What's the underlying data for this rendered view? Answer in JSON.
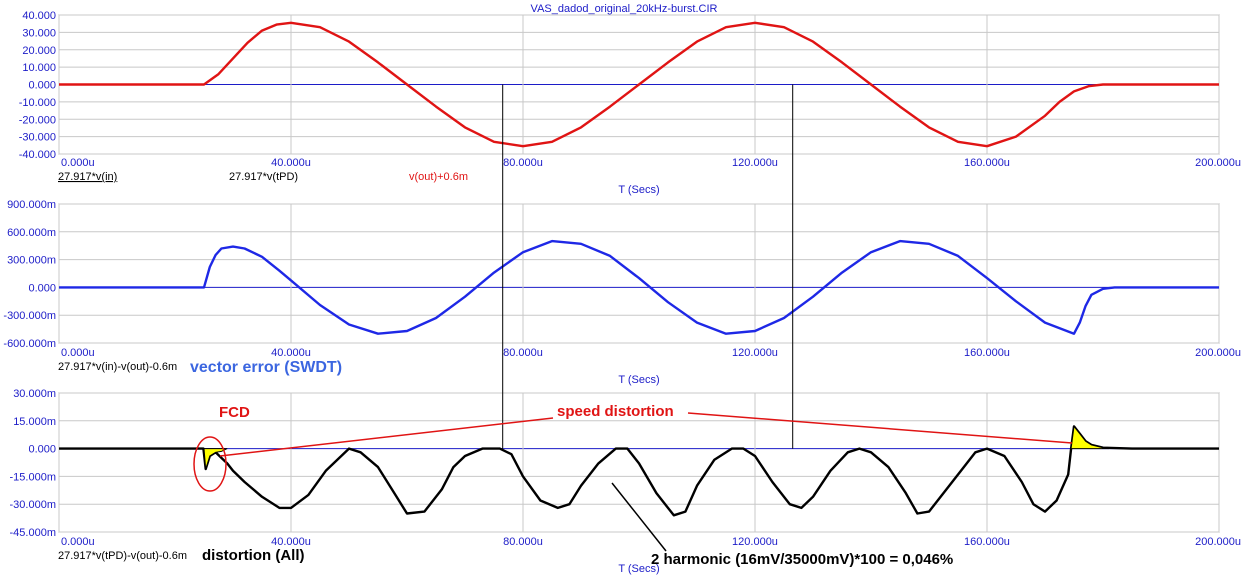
{
  "title": "VAS_dadod_original_20kHz-burst.CIR",
  "colors": {
    "axis_text": "#1c1cc8",
    "grid": "#c8c8c8",
    "zero_line": "#1c1cc8",
    "red": "#e01414",
    "blue": "#1e28e6",
    "black": "#000000",
    "highlight": "#ffff00"
  },
  "chart_data": [
    {
      "type": "line",
      "xlabel": "T (Secs)",
      "xlim": [
        0,
        200
      ],
      "x_ticks": [
        "0.000u",
        "40.000u",
        "80.000u",
        "120.000u",
        "160.000u",
        "200.000u"
      ],
      "ylim": [
        -40,
        40
      ],
      "y_ticks": [
        "40.000",
        "30.000",
        "20.000",
        "10.000",
        "0.000",
        "-10.000",
        "-20.000",
        "-30.000",
        "-40.000"
      ],
      "trace_labels": [
        "27.917*v(in)",
        "27.917*v(tPD)",
        "v(out)+0.6m"
      ],
      "series": [
        {
          "name": "v(out)+0.6m",
          "color": "red",
          "x": [
            0,
            25,
            27.5,
            30,
            32.5,
            35,
            37.5,
            40,
            45,
            50,
            55,
            60,
            65,
            70,
            75,
            80,
            85,
            90,
            95,
            100,
            105,
            110,
            115,
            120,
            125,
            130,
            135,
            140,
            145,
            150,
            155,
            160,
            165,
            170,
            172.5,
            175,
            177.5,
            180,
            200
          ],
          "y": [
            0,
            0,
            6,
            15,
            24,
            31,
            34.5,
            35.5,
            33,
            24.7,
            12.7,
            0,
            -12.7,
            -24.7,
            -33,
            -35.5,
            -33,
            -24.7,
            -12.7,
            0,
            12.7,
            24.7,
            33,
            35.5,
            33,
            24.7,
            12.7,
            0,
            -12.7,
            -24.7,
            -33,
            -35.5,
            -30,
            -18,
            -10,
            -4,
            -1,
            0,
            0
          ]
        }
      ]
    },
    {
      "type": "line",
      "xlabel": "T (Secs)",
      "xlim": [
        0,
        200
      ],
      "x_ticks": [
        "0.000u",
        "40.000u",
        "80.000u",
        "120.000u",
        "160.000u",
        "200.000u"
      ],
      "ylim": [
        -600,
        900
      ],
      "y_ticks": [
        "900.000m",
        "600.000m",
        "300.000m",
        "0.000",
        "-300.000m",
        "-600.000m"
      ],
      "trace_labels": [
        "27.917*v(in)-v(out)-0.6m"
      ],
      "series": [
        {
          "name": "27.917*v(in)-v(out)-0.6m",
          "color": "blue",
          "x": [
            0,
            25,
            26,
            27,
            28,
            30,
            32,
            35,
            38,
            40,
            45,
            50,
            55,
            60,
            65,
            70,
            75,
            80,
            85,
            90,
            95,
            100,
            105,
            110,
            115,
            120,
            125,
            130,
            135,
            140,
            145,
            150,
            155,
            160,
            165,
            170,
            175,
            176,
            177,
            178,
            180,
            182,
            200
          ],
          "y": [
            0,
            0,
            220,
            350,
            420,
            440,
            420,
            330,
            180,
            75,
            -190,
            -400,
            -500,
            -470,
            -330,
            -100,
            160,
            380,
            500,
            470,
            340,
            100,
            -160,
            -380,
            -500,
            -470,
            -330,
            -100,
            160,
            380,
            500,
            470,
            340,
            100,
            -150,
            -380,
            -500,
            -380,
            -200,
            -80,
            -15,
            0,
            0
          ]
        }
      ]
    },
    {
      "type": "line",
      "xlabel": "T (Secs)",
      "xlim": [
        0,
        200
      ],
      "x_ticks": [
        "0.000u",
        "40.000u",
        "80.000u",
        "120.000u",
        "160.000u",
        "200.000u"
      ],
      "ylim": [
        -45,
        30
      ],
      "y_ticks": [
        "30.000m",
        "15.000m",
        "0.000",
        "-15.000m",
        "-30.000m",
        "-45.000m"
      ],
      "trace_labels": [
        "27.917*v(tPD)-v(out)-0.6m"
      ],
      "series": [
        {
          "name": "27.917*v(tPD)-v(out)-0.6m",
          "color": "black",
          "x": [
            0,
            24.9,
            25.3,
            26,
            27,
            28,
            29,
            30,
            32,
            35,
            38,
            40,
            43,
            46,
            50,
            52,
            55,
            58,
            60,
            63,
            66,
            68,
            70,
            73,
            76,
            78,
            80,
            83,
            86,
            88,
            90,
            93,
            96,
            98,
            100,
            103,
            106,
            108,
            110,
            113,
            116,
            118,
            120,
            123,
            126,
            128,
            130,
            133,
            136,
            138,
            140,
            143,
            146,
            148,
            150,
            153,
            156,
            158,
            160,
            163,
            166,
            168,
            170,
            172,
            174,
            174.5,
            175,
            176,
            177,
            178,
            180,
            185,
            200
          ],
          "y": [
            0,
            0,
            -11,
            -4,
            -2,
            -5,
            -8,
            -12,
            -18,
            -26,
            -32,
            -32,
            -25,
            -12,
            0,
            -2,
            -10,
            -25,
            -35,
            -34,
            -22,
            -10,
            -4,
            0,
            0,
            -3,
            -15,
            -28,
            -32,
            -30,
            -20,
            -8,
            0,
            0,
            -8,
            -24,
            -36,
            -34,
            -20,
            -6,
            0,
            0,
            -4,
            -18,
            -30,
            -32,
            -26,
            -12,
            -2,
            0,
            -2,
            -10,
            -24,
            -35,
            -34,
            -22,
            -10,
            -2,
            0,
            -4,
            -18,
            -30,
            -34,
            -28,
            -14,
            0,
            12,
            8,
            4,
            2,
            0.5,
            0,
            0
          ]
        }
      ]
    }
  ],
  "annotations": {
    "fcd": "FCD",
    "speed_distortion": "speed distortion",
    "vector_error": "vector error (SWDT)",
    "distortion_all": "distortion (All)",
    "harmonic": "2 harmonic  (16mV/35000mV)*100 = 0,046%"
  }
}
